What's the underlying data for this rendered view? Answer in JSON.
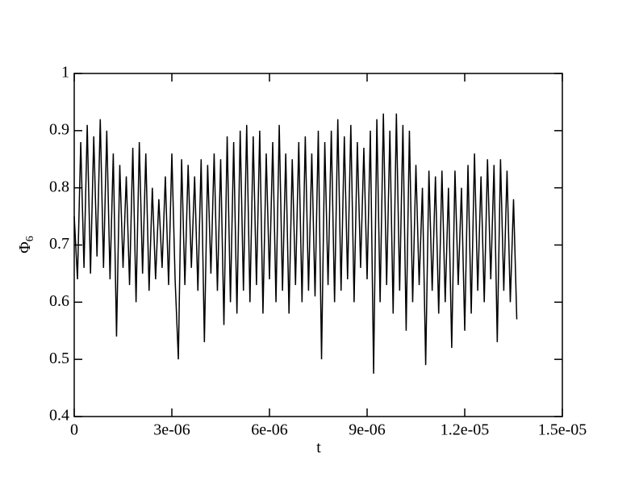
{
  "chart_data": {
    "type": "line",
    "x_label": "t",
    "y_label": "Φ",
    "y_label_subscript": "6",
    "x": [
      0,
      1e-07,
      2e-07,
      3e-07,
      4e-07,
      5e-07,
      6e-07,
      7e-07,
      8e-07,
      9e-07,
      1e-06,
      1.1e-06,
      1.2e-06,
      1.3e-06,
      1.4e-06,
      1.5e-06,
      1.6e-06,
      1.7e-06,
      1.8e-06,
      1.9e-06,
      2e-06,
      2.1e-06,
      2.2e-06,
      2.3e-06,
      2.4e-06,
      2.5e-06,
      2.6e-06,
      2.7e-06,
      2.8e-06,
      2.9e-06,
      3e-06,
      3.1e-06,
      3.2e-06,
      3.3e-06,
      3.4e-06,
      3.5e-06,
      3.6e-06,
      3.7e-06,
      3.8e-06,
      3.9e-06,
      4e-06,
      4.1e-06,
      4.2e-06,
      4.3e-06,
      4.4e-06,
      4.5e-06,
      4.6e-06,
      4.7e-06,
      4.8e-06,
      4.9e-06,
      5e-06,
      5.1e-06,
      5.2e-06,
      5.3e-06,
      5.4e-06,
      5.5e-06,
      5.6e-06,
      5.7e-06,
      5.8e-06,
      5.9e-06,
      6e-06,
      6.1e-06,
      6.2e-06,
      6.3e-06,
      6.4e-06,
      6.5e-06,
      6.6e-06,
      6.7e-06,
      6.8e-06,
      6.9e-06,
      7e-06,
      7.1e-06,
      7.2e-06,
      7.3e-06,
      7.4e-06,
      7.5e-06,
      7.6e-06,
      7.7e-06,
      7.8e-06,
      7.9e-06,
      8e-06,
      8.1e-06,
      8.2e-06,
      8.3e-06,
      8.4e-06,
      8.5e-06,
      8.6e-06,
      8.7e-06,
      8.8e-06,
      8.9e-06,
      9e-06,
      9.1e-06,
      9.2e-06,
      9.3e-06,
      9.4e-06,
      9.5e-06,
      9.6e-06,
      9.7e-06,
      9.8e-06,
      9.9e-06,
      1e-05,
      1.01e-05,
      1.02e-05,
      1.03e-05,
      1.04e-05,
      1.05e-05,
      1.06e-05,
      1.07e-05,
      1.08e-05,
      1.09e-05,
      1.1e-05,
      1.11e-05,
      1.12e-05,
      1.13e-05,
      1.14e-05,
      1.15e-05,
      1.16e-05,
      1.17e-05,
      1.18e-05,
      1.19e-05,
      1.2e-05,
      1.21e-05,
      1.22e-05,
      1.23e-05,
      1.24e-05,
      1.25e-05,
      1.26e-05,
      1.27e-05,
      1.28e-05,
      1.29e-05,
      1.3e-05,
      1.31e-05,
      1.32e-05,
      1.33e-05,
      1.34e-05,
      1.35e-05,
      1.36e-05
    ],
    "series": [
      {
        "color": "#000000",
        "values": [
          0.75,
          0.64,
          0.88,
          0.66,
          0.91,
          0.65,
          0.89,
          0.68,
          0.92,
          0.66,
          0.9,
          0.64,
          0.86,
          0.54,
          0.84,
          0.66,
          0.82,
          0.63,
          0.87,
          0.6,
          0.88,
          0.65,
          0.86,
          0.62,
          0.8,
          0.64,
          0.78,
          0.66,
          0.82,
          0.63,
          0.86,
          0.64,
          0.5,
          0.85,
          0.63,
          0.84,
          0.66,
          0.82,
          0.62,
          0.85,
          0.53,
          0.84,
          0.65,
          0.86,
          0.62,
          0.85,
          0.56,
          0.89,
          0.6,
          0.88,
          0.58,
          0.9,
          0.62,
          0.91,
          0.6,
          0.89,
          0.63,
          0.9,
          0.58,
          0.86,
          0.64,
          0.88,
          0.6,
          0.91,
          0.62,
          0.86,
          0.58,
          0.85,
          0.63,
          0.88,
          0.6,
          0.89,
          0.62,
          0.86,
          0.61,
          0.9,
          0.5,
          0.88,
          0.63,
          0.9,
          0.6,
          0.92,
          0.62,
          0.89,
          0.64,
          0.91,
          0.6,
          0.88,
          0.66,
          0.87,
          0.64,
          0.9,
          0.475,
          0.92,
          0.6,
          0.93,
          0.63,
          0.9,
          0.58,
          0.93,
          0.62,
          0.91,
          0.55,
          0.9,
          0.6,
          0.84,
          0.63,
          0.8,
          0.49,
          0.83,
          0.62,
          0.82,
          0.58,
          0.83,
          0.6,
          0.8,
          0.52,
          0.83,
          0.63,
          0.8,
          0.55,
          0.84,
          0.58,
          0.86,
          0.62,
          0.82,
          0.6,
          0.85,
          0.64,
          0.84,
          0.53,
          0.85,
          0.62,
          0.83,
          0.6,
          0.78,
          0.57
        ]
      }
    ],
    "xlim": [
      0,
      1.5e-05
    ],
    "xticks": [
      0,
      {
        "value": 3e-06,
        "label": "3e-06"
      },
      {
        "value": 6e-06,
        "label": "6e-06"
      },
      {
        "value": 9e-06,
        "label": "9e-06"
      },
      {
        "value": 1.2e-05,
        "label": "1.2e-05"
      },
      {
        "value": 1.5e-05,
        "label": "1.5e-05"
      }
    ],
    "ylim": [
      0.4,
      1
    ],
    "yticks": [
      0.4,
      0.5,
      0.6,
      0.7,
      0.8,
      0.9,
      1
    ],
    "grid": false
  }
}
